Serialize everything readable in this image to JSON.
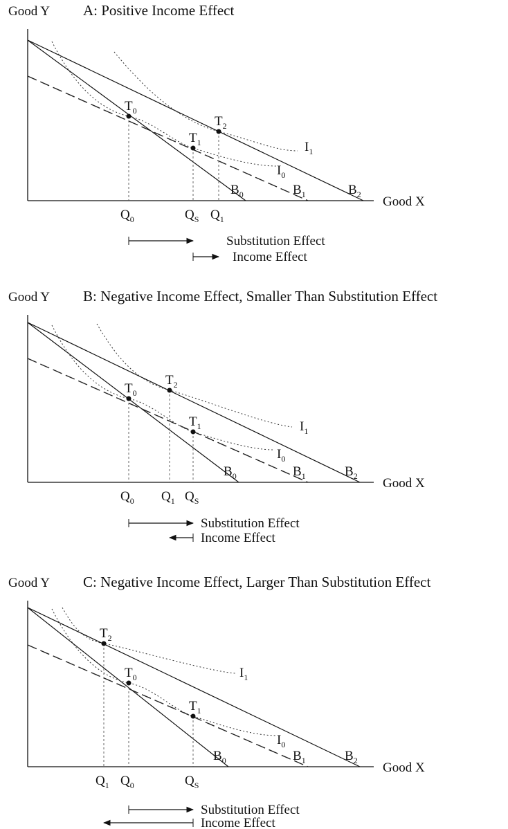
{
  "panels": [
    {
      "y_axis": "Good Y",
      "title": "A: Positive Income Effect",
      "x_axis": "Good X",
      "points": [
        {
          "t": "T",
          "s": "0"
        },
        {
          "t": "T",
          "s": "1"
        },
        {
          "t": "T",
          "s": "2"
        }
      ],
      "lines": [
        {
          "t": "B",
          "s": "0"
        },
        {
          "t": "B",
          "s": "1"
        },
        {
          "t": "B",
          "s": "2"
        }
      ],
      "curves": [
        {
          "t": "I",
          "s": "0"
        },
        {
          "t": "I",
          "s": "1"
        }
      ],
      "quantities": [
        {
          "t": "Q",
          "s": "0"
        },
        {
          "t": "Q",
          "s": "S"
        },
        {
          "t": "Q",
          "s": "1"
        }
      ],
      "effects": [
        "Substitution Effect",
        "Income Effect"
      ]
    },
    {
      "y_axis": "Good Y",
      "title": "B: Negative Income Effect, Smaller Than Substitution Effect",
      "x_axis": "Good X",
      "points": [
        {
          "t": "T",
          "s": "0"
        },
        {
          "t": "T",
          "s": "1"
        },
        {
          "t": "T",
          "s": "2"
        }
      ],
      "lines": [
        {
          "t": "B",
          "s": "0"
        },
        {
          "t": "B",
          "s": "1"
        },
        {
          "t": "B",
          "s": "2"
        }
      ],
      "curves": [
        {
          "t": "I",
          "s": "0"
        },
        {
          "t": "I",
          "s": "1"
        }
      ],
      "quantities": [
        {
          "t": "Q",
          "s": "0"
        },
        {
          "t": "Q",
          "s": "1"
        },
        {
          "t": "Q",
          "s": "S"
        }
      ],
      "effects": [
        "Substitution Effect",
        "Income Effect"
      ]
    },
    {
      "y_axis": "Good Y",
      "title": "C: Negative Income Effect, Larger Than Substitution Effect",
      "x_axis": "Good X",
      "points": [
        {
          "t": "T",
          "s": "0"
        },
        {
          "t": "T",
          "s": "1"
        },
        {
          "t": "T",
          "s": "2"
        }
      ],
      "lines": [
        {
          "t": "B",
          "s": "0"
        },
        {
          "t": "B",
          "s": "1"
        },
        {
          "t": "B",
          "s": "2"
        }
      ],
      "curves": [
        {
          "t": "I",
          "s": "0"
        },
        {
          "t": "I",
          "s": "1"
        }
      ],
      "quantities": [
        {
          "t": "Q",
          "s": "1"
        },
        {
          "t": "Q",
          "s": "0"
        },
        {
          "t": "Q",
          "s": "S"
        }
      ],
      "effects": [
        "Substitution Effect",
        "Income Effect"
      ]
    }
  ]
}
